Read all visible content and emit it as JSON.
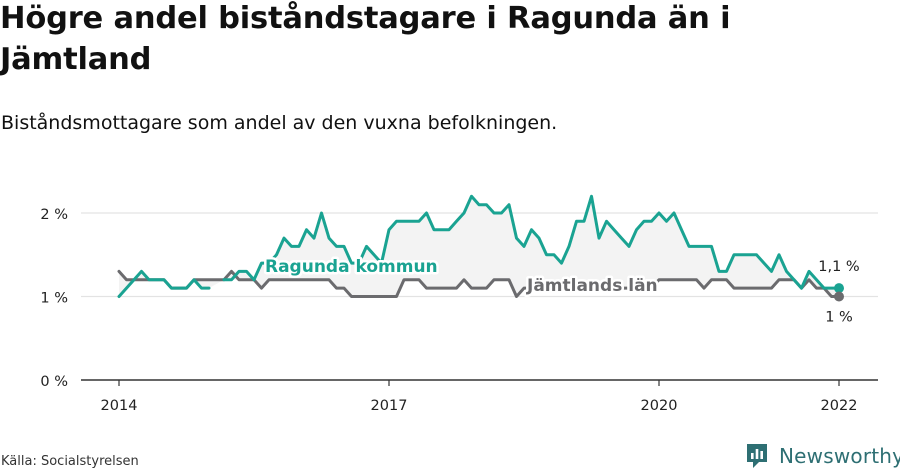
{
  "header": {
    "title": "Högre andel biståndstagare i Ragunda än i Jämtland",
    "subtitle": "Biståndsmottagare som andel av den vuxna befolkningen."
  },
  "footer": {
    "source": "Källa: Socialstyrelsen",
    "brand": "Newsworthy"
  },
  "colors": {
    "ragunda": "#1aa392",
    "jamtland": "#6b6b6e",
    "band": "#f3f3f3",
    "grid": "#e3e3e3",
    "brand": "#2e6f73"
  },
  "chart_data": {
    "type": "line",
    "ylim": [
      0,
      2.2
    ],
    "yticks": [
      0,
      1,
      2
    ],
    "ytick_labels": [
      "0 %",
      "1 %",
      "2 %"
    ],
    "xlim": [
      2014,
      2022.3
    ],
    "xticks": [
      2014,
      2017,
      2020,
      2022
    ],
    "xtick_labels": [
      "2014",
      "2017",
      "2020",
      "2022"
    ],
    "grid": true,
    "series_labels": {
      "ragunda": "Ragunda kommun",
      "jamtland": "Jämtlands län"
    },
    "end_labels": {
      "ragunda": "1,1 %",
      "jamtland": "1 %"
    },
    "series": [
      {
        "name": "Ragunda kommun",
        "x": [
          2014.0,
          2014.083,
          2014.167,
          2014.25,
          2014.333,
          2014.417,
          2014.5,
          2014.583,
          2014.667,
          2014.75,
          2014.833,
          2014.917,
          2015.0,
          2015.083,
          2015.167,
          2015.25,
          2015.333,
          2015.417,
          2015.5,
          2015.583,
          2015.667,
          2015.75,
          2015.833,
          2015.917,
          2016.0,
          2016.083,
          2016.167,
          2016.25,
          2016.333,
          2016.417,
          2016.5,
          2016.583,
          2016.667,
          2016.75,
          2016.833,
          2016.917,
          2017.0,
          2017.083,
          2017.167,
          2017.25,
          2017.333,
          2017.417,
          2017.5,
          2017.583,
          2017.667,
          2017.75,
          2017.833,
          2017.917,
          2018.0,
          2018.083,
          2018.167,
          2018.25,
          2018.333,
          2018.417,
          2018.5,
          2018.583,
          2018.667,
          2018.75,
          2018.833,
          2018.917,
          2019.0,
          2019.083,
          2019.167,
          2019.25,
          2019.333,
          2019.417,
          2019.5,
          2019.583,
          2019.667,
          2019.75,
          2019.833,
          2019.917,
          2020.0,
          2020.083,
          2020.167,
          2020.25,
          2020.333,
          2020.417,
          2020.5,
          2020.583,
          2020.667,
          2020.75,
          2020.833,
          2020.917,
          2021.0,
          2021.083,
          2021.167,
          2021.25,
          2021.333,
          2021.417,
          2021.5,
          2021.583,
          2021.667,
          2021.75,
          2021.833,
          2021.917,
          2022.0
        ],
        "values": [
          1.0,
          1.1,
          1.2,
          1.3,
          1.2,
          1.2,
          1.2,
          1.1,
          1.1,
          1.1,
          1.2,
          1.1,
          1.1,
          null,
          1.2,
          1.2,
          1.3,
          1.3,
          1.2,
          1.4,
          1.4,
          1.5,
          1.7,
          1.6,
          1.6,
          1.8,
          1.7,
          2.0,
          1.7,
          1.6,
          1.6,
          1.4,
          1.4,
          1.6,
          1.5,
          1.4,
          1.8,
          1.9,
          1.9,
          1.9,
          1.9,
          2.0,
          1.8,
          1.8,
          1.8,
          1.9,
          2.0,
          2.2,
          2.1,
          2.1,
          2.0,
          2.0,
          2.1,
          1.7,
          1.6,
          1.8,
          1.7,
          1.5,
          1.5,
          1.4,
          1.6,
          1.9,
          1.9,
          2.2,
          1.7,
          1.9,
          1.8,
          1.7,
          1.6,
          1.8,
          1.9,
          1.9,
          2.0,
          1.9,
          2.0,
          1.8,
          1.6,
          1.6,
          1.6,
          1.6,
          1.3,
          1.3,
          1.5,
          1.5,
          1.5,
          1.5,
          1.4,
          1.3,
          1.5,
          1.3,
          1.2,
          1.1,
          1.3,
          1.2,
          1.1,
          1.1,
          1.1
        ]
      },
      {
        "name": "Jämtlands län",
        "x": [
          2014.0,
          2014.083,
          2014.167,
          2014.25,
          2014.333,
          2014.417,
          2014.5,
          2014.583,
          2014.667,
          2014.75,
          2014.833,
          2014.917,
          2015.0,
          2015.083,
          2015.167,
          2015.25,
          2015.333,
          2015.417,
          2015.5,
          2015.583,
          2015.667,
          2015.75,
          2015.833,
          2015.917,
          2016.0,
          2016.083,
          2016.167,
          2016.25,
          2016.333,
          2016.417,
          2016.5,
          2016.583,
          2016.667,
          2016.75,
          2016.833,
          2016.917,
          2017.0,
          2017.083,
          2017.167,
          2017.25,
          2017.333,
          2017.417,
          2017.5,
          2017.583,
          2017.667,
          2017.75,
          2017.833,
          2017.917,
          2018.0,
          2018.083,
          2018.167,
          2018.25,
          2018.333,
          2018.417,
          2018.5,
          2018.583,
          2018.667,
          2018.75,
          2018.833,
          2018.917,
          2019.0,
          2019.083,
          2019.167,
          2019.25,
          2019.333,
          2019.417,
          2019.5,
          2019.583,
          2019.667,
          2019.75,
          2019.833,
          2019.917,
          2020.0,
          2020.083,
          2020.167,
          2020.25,
          2020.333,
          2020.417,
          2020.5,
          2020.583,
          2020.667,
          2020.75,
          2020.833,
          2020.917,
          2021.0,
          2021.083,
          2021.167,
          2021.25,
          2021.333,
          2021.417,
          2021.5,
          2021.583,
          2021.667,
          2021.75,
          2021.833,
          2021.917,
          2022.0
        ],
        "values": [
          1.3,
          1.2,
          1.2,
          1.2,
          1.2,
          1.2,
          1.2,
          1.1,
          1.1,
          1.1,
          1.2,
          1.2,
          1.2,
          1.2,
          1.2,
          1.3,
          1.2,
          1.2,
          1.2,
          1.1,
          1.2,
          1.2,
          1.2,
          1.2,
          1.2,
          1.2,
          1.2,
          1.2,
          1.2,
          1.1,
          1.1,
          1.0,
          1.0,
          1.0,
          1.0,
          1.0,
          1.0,
          1.0,
          1.2,
          1.2,
          1.2,
          1.1,
          1.1,
          1.1,
          1.1,
          1.1,
          1.2,
          1.1,
          1.1,
          1.1,
          1.2,
          1.2,
          1.2,
          1.0,
          1.1,
          1.1,
          1.1,
          1.1,
          1.1,
          1.1,
          1.1,
          1.1,
          1.1,
          1.1,
          1.1,
          1.1,
          1.1,
          1.1,
          1.1,
          1.1,
          1.1,
          1.1,
          1.2,
          1.2,
          1.2,
          1.2,
          1.2,
          1.2,
          1.1,
          1.2,
          1.2,
          1.2,
          1.1,
          1.1,
          1.1,
          1.1,
          1.1,
          1.1,
          1.2,
          1.2,
          1.2,
          1.1,
          1.2,
          1.1,
          1.1,
          1.0,
          1.0
        ]
      }
    ]
  }
}
